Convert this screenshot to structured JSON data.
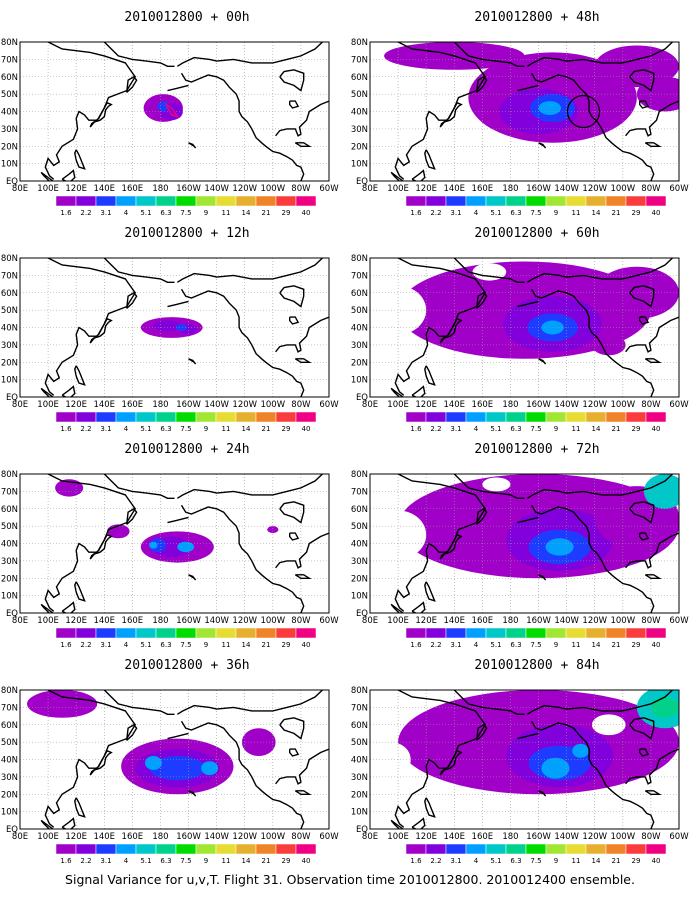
{
  "caption": "Signal Variance for u,v,T. Flight 31. Observation time 2010012800. 2010012400 ensemble.",
  "colorbar": {
    "colors": [
      "#a000c8",
      "#8200dc",
      "#1e3cff",
      "#00a0ff",
      "#00c8c8",
      "#00d28c",
      "#00dc00",
      "#a0e632",
      "#e6dc32",
      "#e6af2d",
      "#f08228",
      "#fa3c3c",
      "#f00082"
    ],
    "labels": [
      "1.6",
      "2.2",
      "3.1",
      "4",
      "5.1",
      "6.3",
      "7.5",
      "9",
      "11",
      "14",
      "21",
      "29",
      "40"
    ]
  },
  "axes": {
    "x_ticks": [
      "80E",
      "100E",
      "120E",
      "140E",
      "160E",
      "180",
      "160W",
      "140W",
      "120W",
      "100W",
      "80W",
      "60W"
    ],
    "y_ticks": [
      "80N",
      "70N",
      "60N",
      "50N",
      "40N",
      "30N",
      "20N",
      "10N",
      "EQ"
    ]
  },
  "chart_data": [
    {
      "type": "heatmap",
      "title": "2010012800 + 00h",
      "forecast_hour": 0,
      "xlim": [
        "80E",
        "60W"
      ],
      "ylim": [
        "EQ",
        "80N"
      ],
      "levels": [
        1.6,
        2.2,
        3.1,
        4,
        5.1,
        6.3,
        7.5,
        9,
        11,
        14,
        21,
        29,
        40
      ],
      "maxima": [
        {
          "lon": -178,
          "lat": 42,
          "level": "4"
        },
        {
          "lon": -170,
          "lat": 40,
          "level": "3.1"
        }
      ]
    },
    {
      "type": "heatmap",
      "title": "2010012800 + 12h",
      "forecast_hour": 12,
      "xlim": [
        "80E",
        "60W"
      ],
      "ylim": [
        "EQ",
        "80N"
      ],
      "levels": [
        1.6,
        2.2,
        3.1,
        4,
        5.1,
        6.3,
        7.5,
        9,
        11,
        14,
        21,
        29,
        40
      ],
      "maxima": [
        {
          "lon": -178,
          "lat": 42,
          "level": "3.1"
        },
        {
          "lon": -157,
          "lat": 40,
          "level": "3.1"
        }
      ]
    },
    {
      "type": "heatmap",
      "title": "2010012800 + 24h",
      "forecast_hour": 24,
      "xlim": [
        "80E",
        "60W"
      ],
      "ylim": [
        "EQ",
        "80N"
      ],
      "levels": [
        1.6,
        2.2,
        3.1,
        4,
        5.1,
        6.3,
        7.5,
        9,
        11,
        14,
        21,
        29,
        40
      ],
      "maxima": [
        {
          "lon": 175,
          "lat": 39,
          "level": "5.1"
        },
        {
          "lon": -162,
          "lat": 38,
          "level": "5.1"
        }
      ]
    },
    {
      "type": "heatmap",
      "title": "2010012800 + 36h",
      "forecast_hour": 36,
      "xlim": [
        "80E",
        "60W"
      ],
      "ylim": [
        "EQ",
        "80N"
      ],
      "levels": [
        1.6,
        2.2,
        3.1,
        4,
        5.1,
        6.3,
        7.5,
        9,
        11,
        14,
        21,
        29,
        40
      ],
      "maxima": [
        {
          "lon": 175,
          "lat": 38,
          "level": "5.1"
        },
        {
          "lon": -145,
          "lat": 35,
          "level": "5.1"
        }
      ]
    },
    {
      "type": "heatmap",
      "title": "2010012800 + 48h",
      "forecast_hour": 48,
      "xlim": [
        "80E",
        "60W"
      ],
      "ylim": [
        "EQ",
        "80N"
      ],
      "levels": [
        1.6,
        2.2,
        3.1,
        4,
        5.1,
        6.3,
        7.5,
        9,
        11,
        14,
        21,
        29,
        40
      ],
      "maxima": [
        {
          "lon": -152,
          "lat": 42,
          "level": "5.1"
        }
      ]
    },
    {
      "type": "heatmap",
      "title": "2010012800 + 60h",
      "forecast_hour": 60,
      "xlim": [
        "80E",
        "60W"
      ],
      "ylim": [
        "EQ",
        "80N"
      ],
      "levels": [
        1.6,
        2.2,
        3.1,
        4,
        5.1,
        6.3,
        7.5,
        9,
        11,
        14,
        21,
        29,
        40
      ],
      "maxima": [
        {
          "lon": -150,
          "lat": 40,
          "level": "5.1"
        }
      ]
    },
    {
      "type": "heatmap",
      "title": "2010012800 + 72h",
      "forecast_hour": 72,
      "xlim": [
        "80E",
        "60W"
      ],
      "ylim": [
        "EQ",
        "80N"
      ],
      "levels": [
        1.6,
        2.2,
        3.1,
        4,
        5.1,
        6.3,
        7.5,
        9,
        11,
        14,
        21,
        29,
        40
      ],
      "maxima": [
        {
          "lon": -145,
          "lat": 38,
          "level": "5.1"
        }
      ]
    },
    {
      "type": "heatmap",
      "title": "2010012800 + 84h",
      "forecast_hour": 84,
      "xlim": [
        "80E",
        "60W"
      ],
      "ylim": [
        "EQ",
        "80N"
      ],
      "levels": [
        1.6,
        2.2,
        3.1,
        4,
        5.1,
        6.3,
        7.5,
        9,
        11,
        14,
        21,
        29,
        40
      ],
      "maxima": [
        {
          "lon": -148,
          "lat": 35,
          "level": "5.1"
        },
        {
          "lon": -130,
          "lat": 45,
          "level": "4"
        }
      ]
    }
  ]
}
